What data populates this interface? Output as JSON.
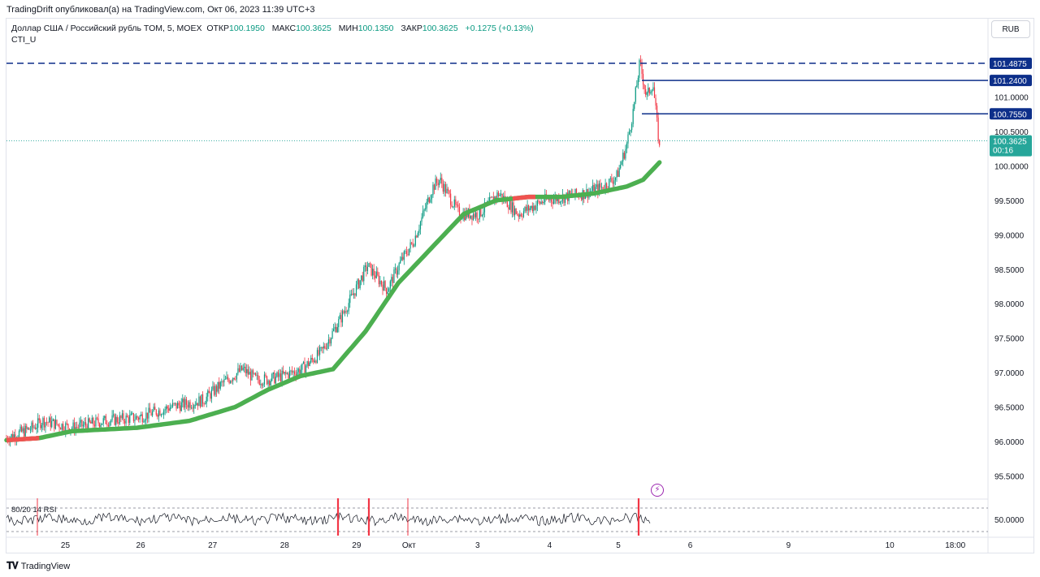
{
  "caption": "TradingDrift опубликовал(а) на TradingView.com, Окт 06, 2023 11:39 UTC+3",
  "legend": {
    "symbol": "Доллар США / Российский рубль TOM, 5, MOEX",
    "open_label": "ОТКР",
    "open": "100.1950",
    "high_label": "МАКС",
    "high": "100.3625",
    "low_label": "МИН",
    "low": "100.1350",
    "close_label": "ЗАКР",
    "close": "100.3625",
    "change": "+0.1275 (+0.13%)",
    "indicator": "CTI_U"
  },
  "currency_button": "RUB",
  "footer": {
    "logo": "TradingView"
  },
  "icons": {
    "alert": "lightning-icon"
  },
  "colors": {
    "bull": "#089981",
    "bear": "#f23645",
    "ma_green": "#4caf50",
    "ma_red": "#ef5350",
    "level": "#0d2f8a",
    "last": "#26a69a",
    "grid": "#e0e3eb"
  },
  "chart_data": {
    "type": "candlestick",
    "title": "Доллар США / Российский рубль TOM, 5, MOEX",
    "ylim": [
      95.2,
      101.7
    ],
    "y_ticks": [
      "95.5000",
      "96.0000",
      "96.5000",
      "97.0000",
      "97.5000",
      "98.0000",
      "98.5000",
      "99.0000",
      "99.5000",
      "100.0000",
      "100.5000",
      "101.0000"
    ],
    "x_ticks": [
      "25",
      "26",
      "27",
      "28",
      "29",
      "Окт",
      "3",
      "4",
      "5",
      "6",
      "9",
      "10",
      "18:00"
    ],
    "price_path": [
      [
        0,
        96.05
      ],
      [
        0.4,
        96.2
      ],
      [
        0.55,
        96.3
      ],
      [
        1,
        96.2
      ],
      [
        1.5,
        96.3
      ],
      [
        2,
        96.35
      ],
      [
        2.5,
        96.5
      ],
      [
        3,
        96.6
      ],
      [
        3.3,
        96.85
      ],
      [
        3.6,
        97.05
      ],
      [
        3.8,
        96.9
      ],
      [
        4,
        96.9
      ],
      [
        4.2,
        96.95
      ],
      [
        4.5,
        97.05
      ],
      [
        4.8,
        97.3
      ],
      [
        5.1,
        97.8
      ],
      [
        5.5,
        98.55
      ],
      [
        5.8,
        98.2
      ],
      [
        6,
        98.6
      ],
      [
        6.2,
        98.9
      ],
      [
        6.5,
        99.7
      ],
      [
        6.6,
        99.8
      ],
      [
        6.9,
        99.3
      ],
      [
        7.2,
        99.3
      ],
      [
        7.5,
        99.6
      ],
      [
        7.8,
        99.3
      ],
      [
        8.2,
        99.5
      ],
      [
        8.5,
        99.55
      ],
      [
        8.8,
        99.6
      ],
      [
        9.1,
        99.7
      ],
      [
        9.3,
        99.85
      ],
      [
        9.45,
        100.3
      ],
      [
        9.55,
        100.8
      ],
      [
        9.65,
        101.5
      ],
      [
        9.75,
        101.0
      ],
      [
        9.85,
        101.2
      ],
      [
        9.95,
        100.25
      ]
    ],
    "ma_path": [
      [
        0,
        96.02
      ],
      [
        0.5,
        96.05
      ],
      [
        1,
        96.15
      ],
      [
        2,
        96.2
      ],
      [
        2.8,
        96.3
      ],
      [
        3.5,
        96.5
      ],
      [
        4,
        96.75
      ],
      [
        4.5,
        96.95
      ],
      [
        5,
        97.05
      ],
      [
        5.5,
        97.6
      ],
      [
        6,
        98.3
      ],
      [
        6.5,
        98.8
      ],
      [
        7,
        99.3
      ],
      [
        7.5,
        99.5
      ],
      [
        8,
        99.55
      ],
      [
        8.5,
        99.55
      ],
      [
        9,
        99.6
      ],
      [
        9.5,
        99.7
      ],
      [
        9.75,
        99.8
      ],
      [
        9.9,
        99.95
      ],
      [
        10,
        100.05
      ]
    ],
    "levels": [
      {
        "value": 101.4875,
        "label": "101.4875",
        "style": "dashed"
      },
      {
        "value": 101.24,
        "label": "101.2400",
        "style": "solid"
      },
      {
        "value": 100.755,
        "label": "100.7550",
        "style": "solid"
      }
    ],
    "last_price": {
      "value": 100.3625,
      "label": "100.3625",
      "timer": "00:16"
    },
    "sub_indicator": {
      "label": "80/20 14 RSI",
      "value_label": "50.0000"
    }
  }
}
